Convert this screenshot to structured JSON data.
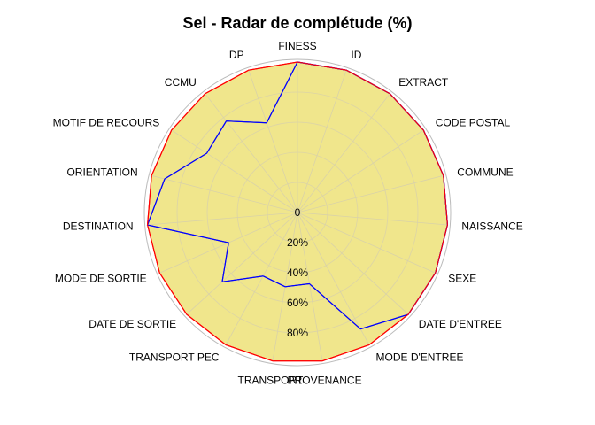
{
  "chart_data": {
    "type": "radar",
    "title": "Sel - Radar de complétude (%)",
    "categories": [
      "FINESS",
      "ID",
      "EXTRACT",
      "CODE POSTAL",
      "COMMUNE",
      "NAISSANCE",
      "SEXE",
      "DATE D'ENTREE",
      "MODE D'ENTREE",
      "PROVENANCE",
      "TRANSPORT",
      "TRANSPORT PEC",
      "DATE DE SORTIE",
      "MODE DE SORTIE",
      "DESTINATION",
      "ORIENTATION",
      "MOTIF DE RECOURS",
      "CCMU",
      "DP"
    ],
    "r_ticks": [
      "0",
      "20%",
      "40%",
      "60%",
      "80%"
    ],
    "rlim": [
      0,
      100
    ],
    "series": [
      {
        "name": "",
        "color": "#ff0000",
        "fill": "#f0e68c",
        "values": [
          100,
          100,
          100,
          100,
          100,
          100,
          100,
          100,
          100,
          100,
          100,
          100,
          100,
          100,
          100,
          100,
          100,
          100,
          100
        ]
      },
      {
        "name": "",
        "color": "#0000ff",
        "fill": "none",
        "values": [
          100,
          100,
          100,
          100,
          100,
          100,
          100,
          100,
          88,
          48,
          50,
          48,
          68,
          50,
          100,
          91,
          72,
          77,
          63
        ]
      }
    ],
    "max_ring_color": "#bbbbbb",
    "grid_color": "#d9d2a8"
  }
}
